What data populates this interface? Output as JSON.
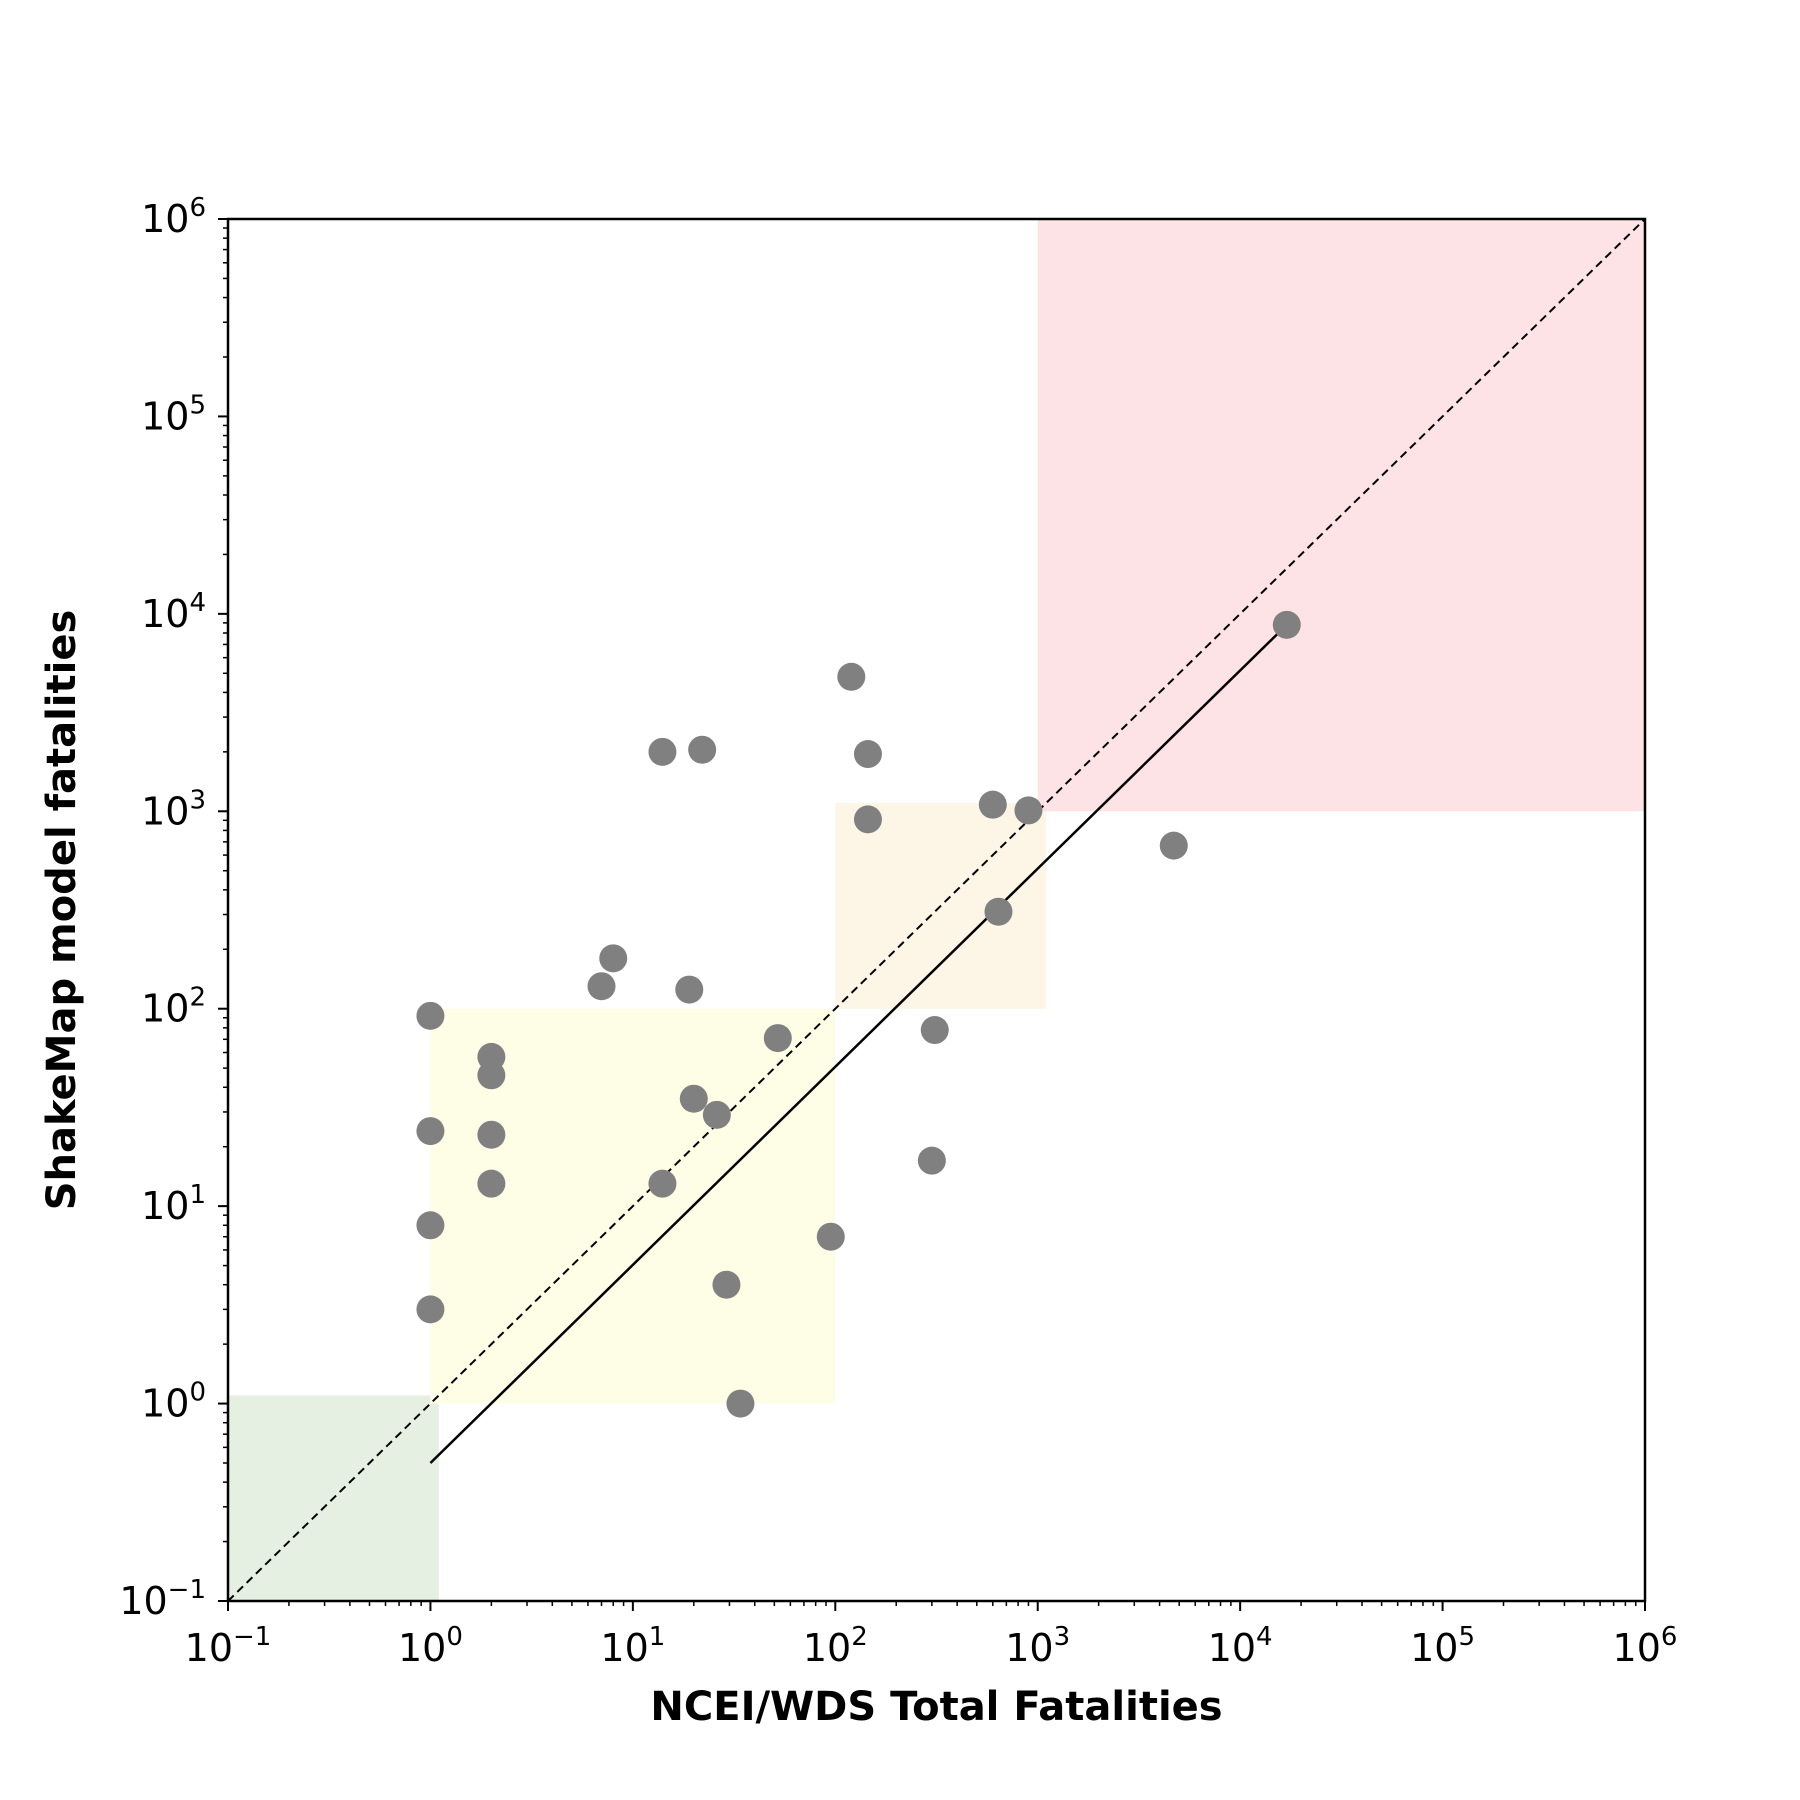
{
  "chart_data": {
    "type": "scatter",
    "title": "",
    "xlabel": "NCEI/WDS Total Fatalities",
    "ylabel": "ShakeMap model fatalities",
    "xscale": "log",
    "yscale": "log",
    "xlim": [
      0.1,
      1000000
    ],
    "ylim": [
      0.1,
      1000000
    ],
    "ticks": [
      {
        "value": 0.1,
        "base": "10",
        "exp": "−1"
      },
      {
        "value": 1,
        "base": "10",
        "exp": "0"
      },
      {
        "value": 10,
        "base": "10",
        "exp": "1"
      },
      {
        "value": 100,
        "base": "10",
        "exp": "2"
      },
      {
        "value": 1000,
        "base": "10",
        "exp": "3"
      },
      {
        "value": 10000,
        "base": "10",
        "exp": "4"
      },
      {
        "value": 100000,
        "base": "10",
        "exp": "5"
      },
      {
        "value": 1000000,
        "base": "10",
        "exp": "6"
      }
    ],
    "grid": false,
    "regions": [
      {
        "x": [
          0.1,
          1.1
        ],
        "y": [
          0.1,
          1.1
        ],
        "color": "#e5f0e2"
      },
      {
        "x": [
          1,
          100
        ],
        "y": [
          1,
          100
        ],
        "color": "#fefee6"
      },
      {
        "x": [
          100,
          1100
        ],
        "y": [
          100,
          1100
        ],
        "color": "#fdf5e6"
      },
      {
        "x": [
          1000,
          1000000
        ],
        "y": [
          1000,
          1000000
        ],
        "color": "#fde3e6"
      }
    ],
    "reference_line": {
      "x": [
        0.1,
        1000000
      ],
      "y": [
        0.1,
        1000000
      ],
      "style": "dashed",
      "color": "#000000"
    },
    "fit_line": {
      "x": [
        1,
        17000
      ],
      "y": [
        0.5,
        8800
      ],
      "style": "solid",
      "color": "#000000"
    },
    "point_color": "#808080",
    "points": [
      {
        "x": 1,
        "y": 92
      },
      {
        "x": 1,
        "y": 24
      },
      {
        "x": 1,
        "y": 8
      },
      {
        "x": 1,
        "y": 3
      },
      {
        "x": 2,
        "y": 57
      },
      {
        "x": 2,
        "y": 46
      },
      {
        "x": 2,
        "y": 23
      },
      {
        "x": 2,
        "y": 13
      },
      {
        "x": 7,
        "y": 130
      },
      {
        "x": 8,
        "y": 180
      },
      {
        "x": 14,
        "y": 2000
      },
      {
        "x": 14,
        "y": 13
      },
      {
        "x": 19,
        "y": 125
      },
      {
        "x": 20,
        "y": 35
      },
      {
        "x": 22,
        "y": 2050
      },
      {
        "x": 26,
        "y": 29
      },
      {
        "x": 29,
        "y": 4
      },
      {
        "x": 34,
        "y": 1
      },
      {
        "x": 52,
        "y": 71
      },
      {
        "x": 95,
        "y": 7
      },
      {
        "x": 120,
        "y": 4800
      },
      {
        "x": 145,
        "y": 1950
      },
      {
        "x": 145,
        "y": 910
      },
      {
        "x": 300,
        "y": 17
      },
      {
        "x": 310,
        "y": 78
      },
      {
        "x": 600,
        "y": 1080
      },
      {
        "x": 640,
        "y": 310
      },
      {
        "x": 900,
        "y": 1010
      },
      {
        "x": 4700,
        "y": 670
      },
      {
        "x": 17000,
        "y": 8800
      }
    ]
  }
}
